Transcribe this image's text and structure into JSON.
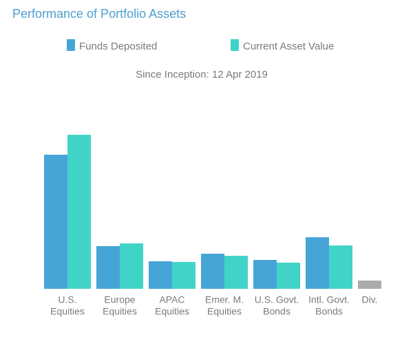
{
  "chart_data": {
    "type": "bar",
    "title": "Performance of Portfolio Assets",
    "subtitle": "Since Inception: 12 Apr 2019",
    "categories": [
      [
        "U.S.",
        "Equities"
      ],
      [
        "Europe",
        "Equities"
      ],
      [
        "APAC",
        "Equities"
      ],
      [
        "Emer. M.",
        "Equities"
      ],
      [
        "U.S. Govt.",
        "Bonds"
      ],
      [
        "Intl. Govt.",
        "Bonds"
      ],
      [
        "Div."
      ]
    ],
    "series": [
      {
        "name": "Funds Deposited",
        "color": "#46a5d6",
        "values": [
          195,
          62,
          40,
          51,
          42,
          75,
          12
        ],
        "colors": [
          "#46a5d6",
          "#46a5d6",
          "#46a5d6",
          "#46a5d6",
          "#46a5d6",
          "#46a5d6",
          "#aaaaaa"
        ]
      },
      {
        "name": "Current Asset Value",
        "color": "#40d4c8",
        "values": [
          224,
          66,
          39,
          48,
          38,
          63,
          null
        ]
      }
    ]
  }
}
